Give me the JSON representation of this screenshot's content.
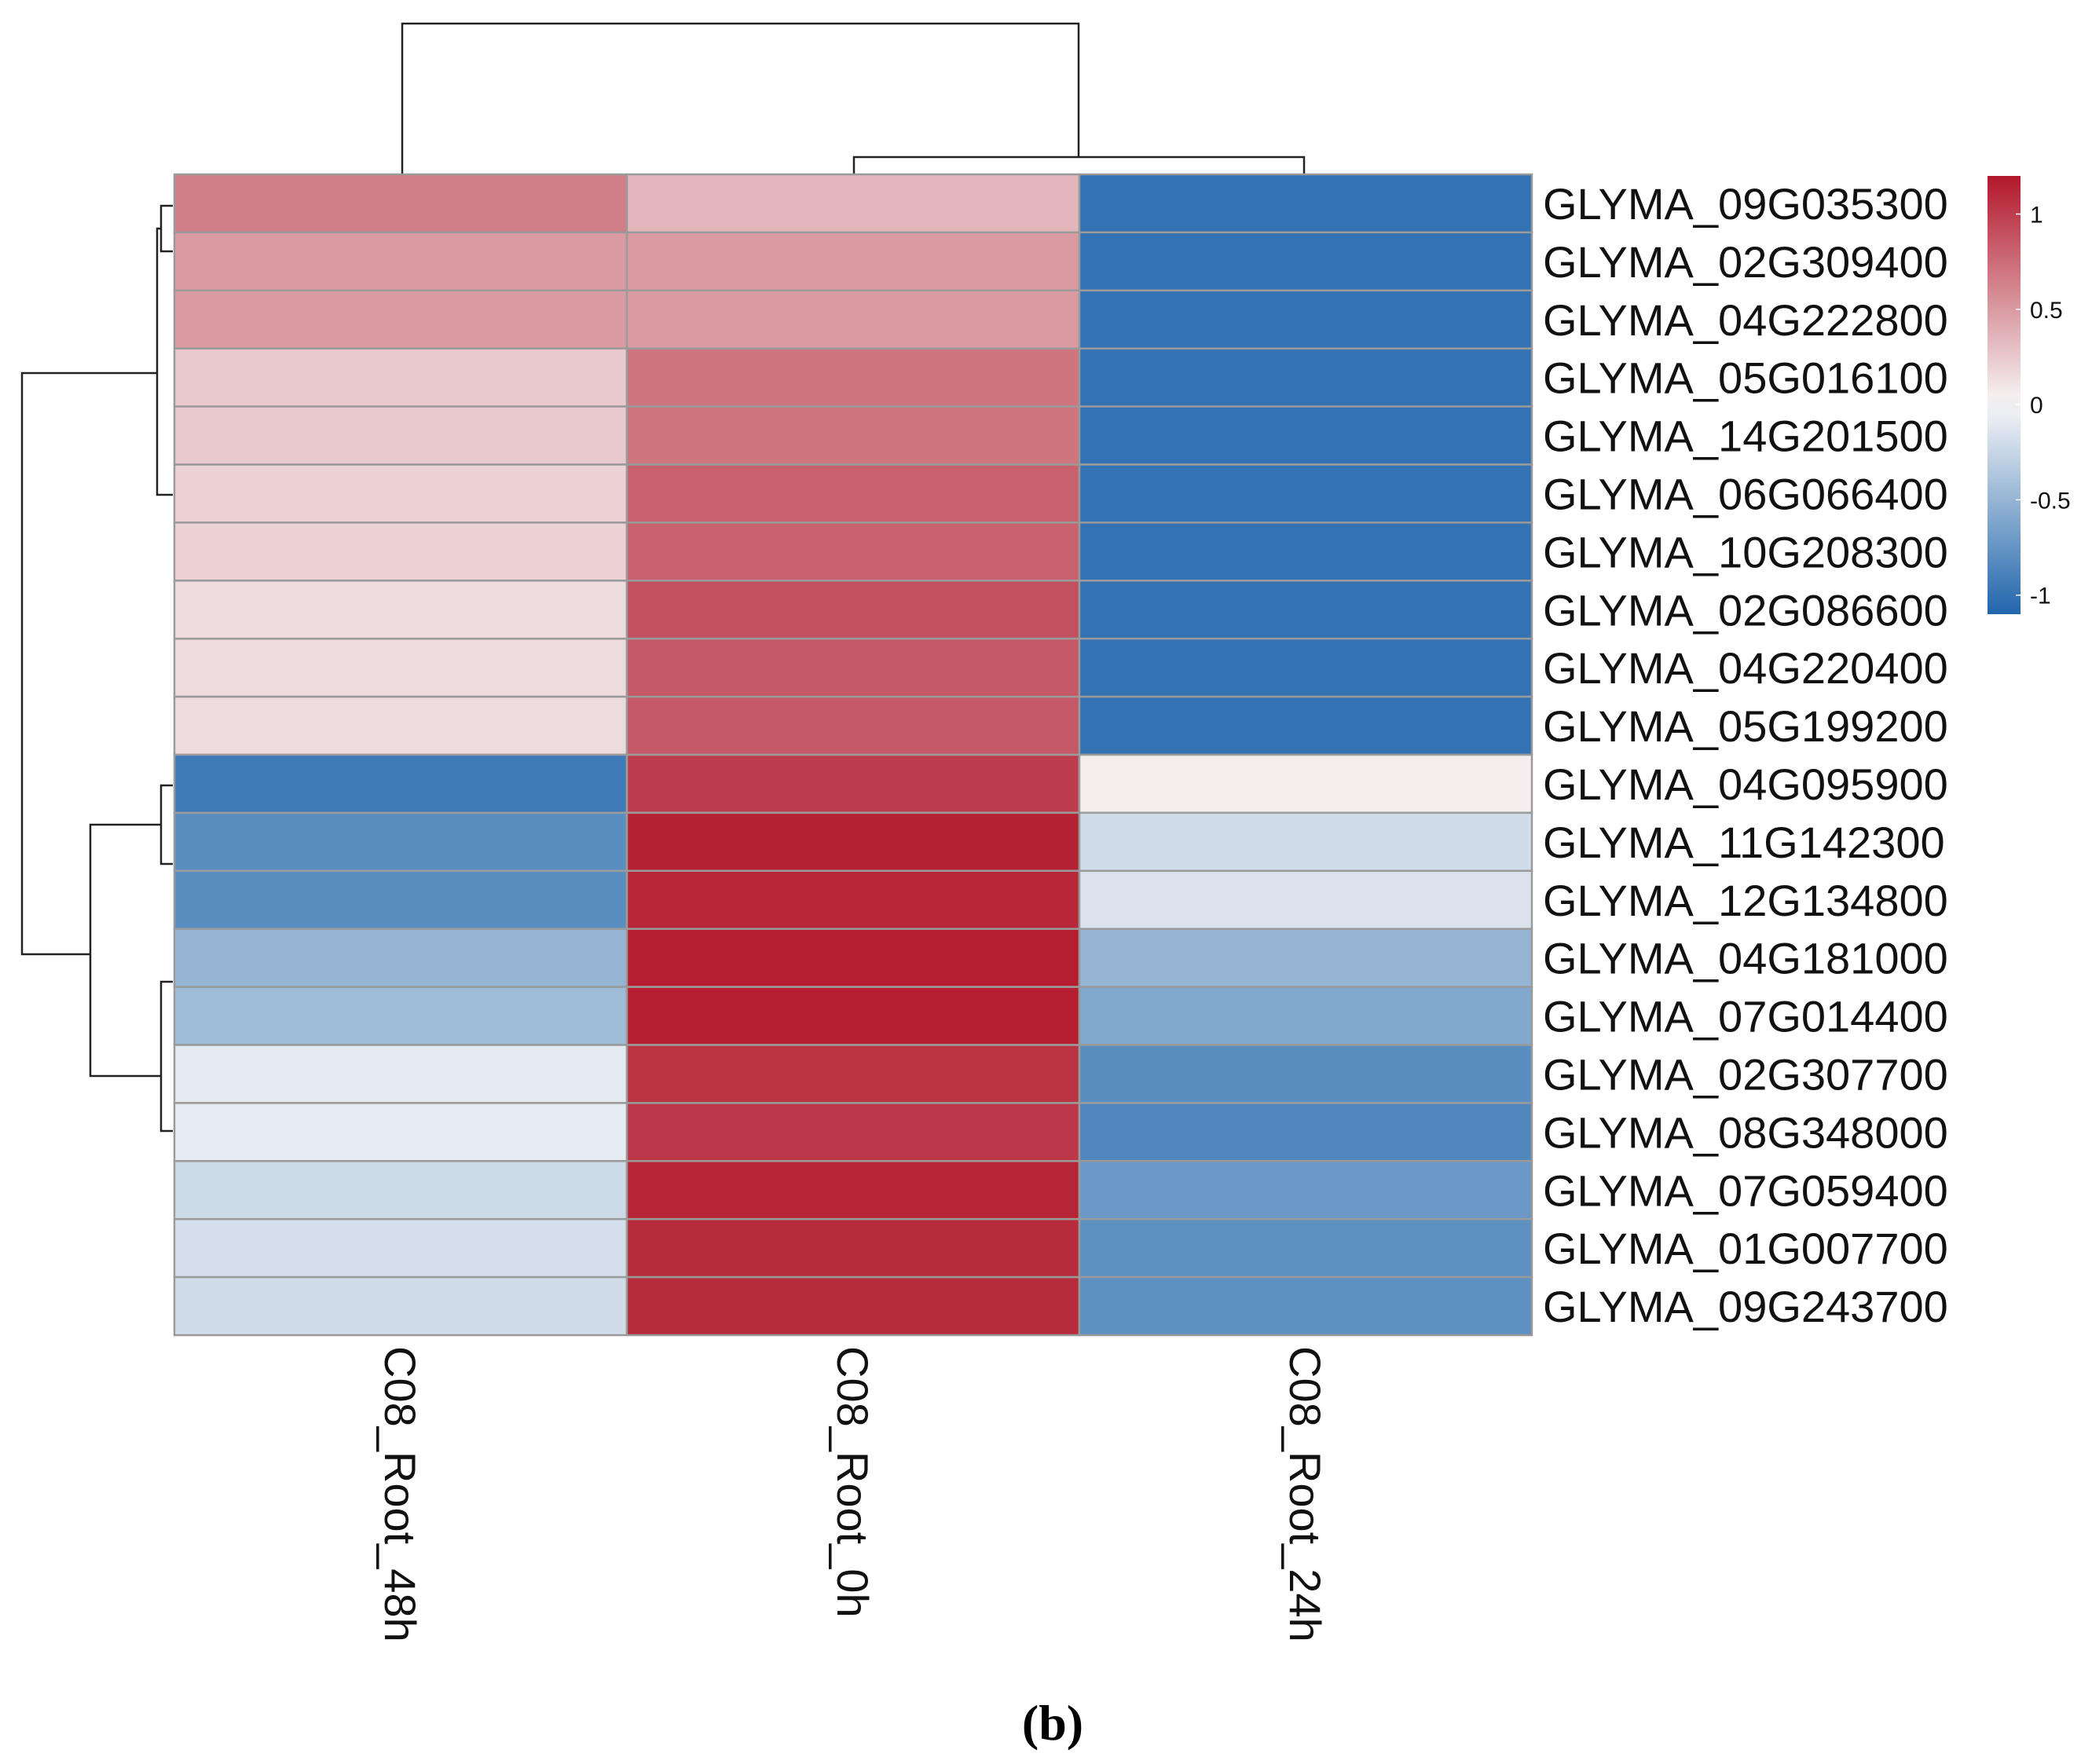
{
  "chart_data": {
    "type": "heatmap",
    "title": "",
    "columns": [
      "C08_Root_48h",
      "C08_Root_0h",
      "C08_Root_24h"
    ],
    "rows": [
      "GLYMA_09G035300",
      "GLYMA_02G309400",
      "GLYMA_04G222800",
      "GLYMA_05G016100",
      "GLYMA_14G201500",
      "GLYMA_06G066400",
      "GLYMA_10G208300",
      "GLYMA_02G086600",
      "GLYMA_04G220400",
      "GLYMA_05G199200",
      "GLYMA_04G095900",
      "GLYMA_11G142300",
      "GLYMA_12G134800",
      "GLYMA_04G181000",
      "GLYMA_07G014400",
      "GLYMA_02G307700",
      "GLYMA_08G348000",
      "GLYMA_07G059400",
      "GLYMA_01G007700",
      "GLYMA_09G243700"
    ],
    "values": [
      [
        0.65,
        0.35,
        -1.0
      ],
      [
        0.5,
        0.5,
        -1.0
      ],
      [
        0.5,
        0.5,
        -1.0
      ],
      [
        0.25,
        0.7,
        -1.0
      ],
      [
        0.25,
        0.7,
        -1.0
      ],
      [
        0.2,
        0.8,
        -1.0
      ],
      [
        0.2,
        0.8,
        -1.0
      ],
      [
        0.15,
        0.9,
        -1.0
      ],
      [
        0.15,
        0.85,
        -1.0
      ],
      [
        0.15,
        0.85,
        -1.0
      ],
      [
        -0.95,
        1.0,
        0.05
      ],
      [
        -0.8,
        1.15,
        -0.2
      ],
      [
        -0.8,
        1.12,
        -0.15
      ],
      [
        -0.5,
        1.17,
        -0.5
      ],
      [
        -0.45,
        1.17,
        -0.6
      ],
      [
        -0.1,
        1.05,
        -0.8
      ],
      [
        -0.08,
        1.03,
        -0.85
      ],
      [
        -0.22,
        1.13,
        -0.72
      ],
      [
        -0.18,
        1.1,
        -0.78
      ],
      [
        -0.2,
        1.1,
        -0.78
      ]
    ],
    "color_scale": {
      "min": -1.1,
      "max": 1.2,
      "low_color": "#2166ac",
      "mid_color": "#f7f7f7",
      "high_color": "#b2182b",
      "ticks": [
        -1,
        -0.5,
        0,
        0.5,
        1
      ],
      "tick_labels": [
        "-1",
        "-0.5",
        "0",
        "0.5",
        "1"
      ]
    },
    "legend": "right"
  },
  "caption": "(b)"
}
